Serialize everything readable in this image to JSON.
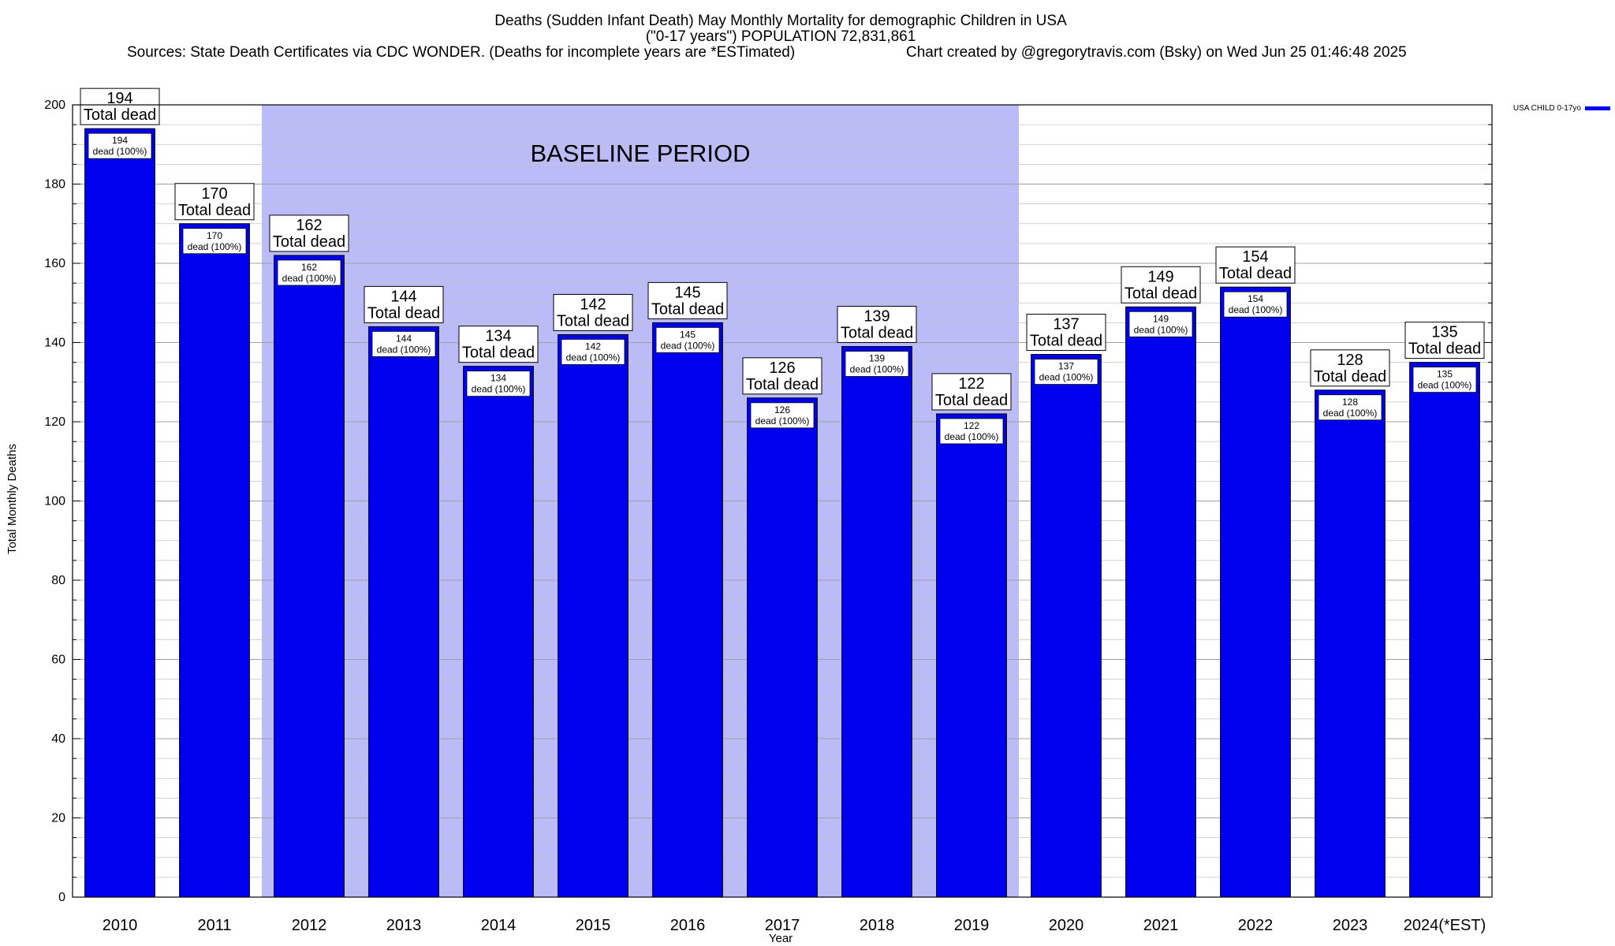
{
  "chart_data": {
    "type": "bar",
    "title": [
      "Deaths (Sudden Infant Death) May Monthly Mortality for demographic Children in USA",
      "(\"0-17 years\") POPULATION 72,831,861"
    ],
    "subtitle_left": "Sources: State Death Certificates via CDC WONDER. (Deaths for incomplete years are *ESTimated)",
    "subtitle_right": "Chart created by @gregorytravis.com (Bsky) on Wed Jun 25 01:46:48 2025",
    "xlabel": "Year",
    "ylabel": "Total Monthly Deaths",
    "ylim": [
      0,
      200
    ],
    "yticks": [
      0,
      20,
      40,
      60,
      80,
      100,
      120,
      140,
      160,
      180,
      200
    ],
    "grid": true,
    "legend_position": "top-right",
    "categories": [
      "2010",
      "2011",
      "2012",
      "2013",
      "2014",
      "2015",
      "2016",
      "2017",
      "2018",
      "2019",
      "2020",
      "2021",
      "2022",
      "2023",
      "2024(*EST)"
    ],
    "series": [
      {
        "name": "USA CHILD 0-17yo",
        "color": "#0000ee",
        "values": [
          194,
          170,
          162,
          144,
          134,
          142,
          145,
          126,
          139,
          122,
          137,
          149,
          154,
          128,
          135
        ]
      }
    ],
    "outer_label_suffix": "Total dead",
    "inner_label_suffix": "dead (100%)",
    "shaded_region": {
      "label": "BASELINE PERIOD",
      "from": "2012",
      "to": "2019",
      "color": "#bbbbf8"
    }
  }
}
